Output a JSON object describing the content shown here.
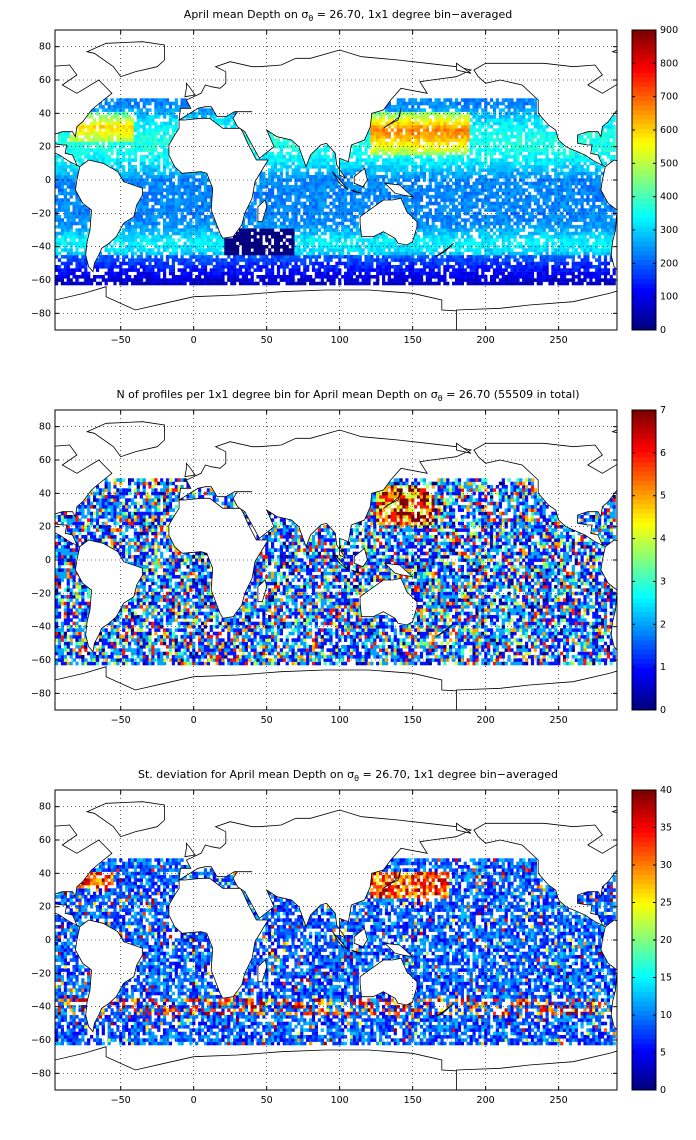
{
  "chart_data": [
    {
      "type": "heatmap",
      "title_prefix": "April mean Depth on ",
      "title_sigma": "σ",
      "title_sub": "θ",
      "title_suffix": " = 26.70, 1x1 degree bin−averaged",
      "xlim": [
        -95,
        290
      ],
      "ylim": [
        -90,
        90
      ],
      "xticks": [
        -50,
        0,
        50,
        100,
        150,
        200,
        250
      ],
      "yticks": [
        -80,
        -60,
        -40,
        -20,
        0,
        20,
        40,
        60,
        80
      ],
      "colorbar": {
        "min": 0,
        "max": 900,
        "ticks": [
          0,
          100,
          200,
          300,
          400,
          500,
          600,
          700,
          800,
          900
        ]
      },
      "grid": true,
      "colormap": "jet"
    },
    {
      "type": "heatmap",
      "title_prefix": "N of profiles per 1x1 degree bin for April mean Depth on ",
      "title_sigma": "σ",
      "title_sub": "θ",
      "title_suffix": " = 26.70 (55509 in total)",
      "xlim": [
        -95,
        290
      ],
      "ylim": [
        -90,
        90
      ],
      "xticks": [
        -50,
        0,
        50,
        100,
        150,
        200,
        250
      ],
      "yticks": [
        -80,
        -60,
        -40,
        -20,
        0,
        20,
        40,
        60,
        80
      ],
      "colorbar": {
        "min": 0,
        "max": 7,
        "ticks": [
          0,
          1,
          2,
          3,
          4,
          5,
          6,
          7
        ]
      },
      "grid": true,
      "colormap": "jet"
    },
    {
      "type": "heatmap",
      "title_prefix": "St. deviation for April mean Depth on ",
      "title_sigma": "σ",
      "title_sub": "θ",
      "title_suffix": " = 26.70, 1x1 degree bin−averaged",
      "xlim": [
        -95,
        290
      ],
      "ylim": [
        -90,
        90
      ],
      "xticks": [
        -50,
        0,
        50,
        100,
        150,
        200,
        250
      ],
      "yticks": [
        -80,
        -60,
        -40,
        -20,
        0,
        20,
        40,
        60,
        80
      ],
      "colorbar": {
        "min": 0,
        "max": 40,
        "ticks": [
          0,
          5,
          10,
          15,
          20,
          25,
          30,
          35,
          40
        ]
      },
      "grid": true,
      "colormap": "jet"
    }
  ]
}
